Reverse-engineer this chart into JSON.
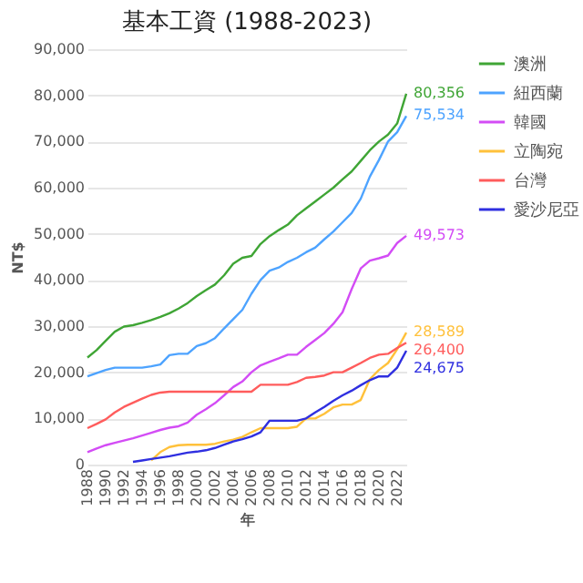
{
  "chart_data": {
    "type": "line",
    "title": "基本工資 (1988-2023)",
    "xlabel": "年",
    "ylabel": "NT$",
    "x": [
      1988,
      1989,
      1990,
      1991,
      1992,
      1993,
      1994,
      1995,
      1996,
      1997,
      1998,
      1999,
      2000,
      2001,
      2002,
      2003,
      2004,
      2005,
      2006,
      2007,
      2008,
      2009,
      2010,
      2011,
      2012,
      2013,
      2014,
      2015,
      2016,
      2017,
      2018,
      2019,
      2020,
      2021,
      2022,
      2023
    ],
    "series": [
      {
        "name": "澳洲",
        "color": "#3fa535",
        "values": [
          23200,
          24800,
          26800,
          28800,
          29900,
          30200,
          30700,
          31300,
          32000,
          32800,
          33800,
          35000,
          36500,
          37800,
          39000,
          41000,
          43500,
          44800,
          45200,
          47800,
          49500,
          50800,
          52000,
          54000,
          55500,
          57000,
          58500,
          60000,
          61800,
          63500,
          65800,
          68100,
          70000,
          71500,
          73900,
          80356
        ],
        "value_labels": [
          null,
          null,
          null,
          null,
          null,
          null,
          null,
          null,
          null,
          null,
          null,
          null,
          null,
          null,
          null,
          null,
          null,
          null,
          null,
          null,
          null,
          null,
          null,
          null,
          null,
          null,
          null,
          null,
          null,
          null,
          null,
          null,
          null,
          null,
          null,
          "80,356"
        ]
      },
      {
        "name": "紐西蘭",
        "color": "#4da3ff",
        "values": [
          19100,
          19800,
          20500,
          21000,
          21000,
          21000,
          21000,
          21300,
          21700,
          23700,
          24000,
          24000,
          25700,
          26300,
          27400,
          29500,
          31500,
          33500,
          37000,
          40000,
          42000,
          42700,
          43900,
          44800,
          46000,
          47000,
          48800,
          50500,
          52500,
          54500,
          57600,
          62400,
          66000,
          70000,
          72000,
          75534
        ],
        "value_labels": [
          null,
          null,
          null,
          null,
          null,
          null,
          null,
          null,
          null,
          null,
          null,
          null,
          null,
          null,
          null,
          null,
          null,
          null,
          null,
          null,
          null,
          null,
          null,
          null,
          null,
          null,
          null,
          null,
          null,
          null,
          null,
          null,
          null,
          null,
          null,
          "75,534"
        ]
      },
      {
        "name": "韓國",
        "color": "#d34cf5",
        "values": [
          2700,
          3500,
          4200,
          4700,
          5200,
          5700,
          6300,
          6900,
          7500,
          8000,
          8300,
          9100,
          10800,
          12000,
          13300,
          15000,
          16800,
          18000,
          20000,
          21500,
          22300,
          23000,
          23800,
          23800,
          25500,
          27000,
          28500,
          30500,
          33000,
          38000,
          42500,
          44200,
          44700,
          45300,
          48000,
          49573
        ],
        "value_labels": [
          null,
          null,
          null,
          null,
          null,
          null,
          null,
          null,
          null,
          null,
          null,
          null,
          null,
          null,
          null,
          null,
          null,
          null,
          null,
          null,
          null,
          null,
          null,
          null,
          null,
          null,
          null,
          null,
          null,
          null,
          null,
          null,
          null,
          null,
          null,
          "49,573"
        ]
      },
      {
        "name": "立陶宛",
        "color": "#ffc13b",
        "values": [
          null,
          null,
          null,
          null,
          null,
          null,
          null,
          900,
          2700,
          3800,
          4200,
          4300,
          4300,
          4300,
          4500,
          5000,
          5400,
          6000,
          7000,
          7900,
          7900,
          7900,
          7900,
          8200,
          10000,
          10000,
          11000,
          12400,
          13000,
          13000,
          14000,
          18500,
          20500,
          22000,
          25000,
          28589
        ],
        "value_labels": [
          null,
          null,
          null,
          null,
          null,
          null,
          null,
          null,
          null,
          null,
          null,
          null,
          null,
          null,
          null,
          null,
          null,
          null,
          null,
          null,
          null,
          null,
          null,
          null,
          null,
          null,
          null,
          null,
          null,
          null,
          null,
          null,
          null,
          null,
          null,
          "28,589"
        ]
      },
      {
        "name": "台灣",
        "color": "#ff5c5c",
        "values": [
          7900,
          8800,
          9800,
          11300,
          12500,
          13400,
          14300,
          15100,
          15600,
          15800,
          15800,
          15800,
          15800,
          15800,
          15800,
          15800,
          15800,
          15800,
          15800,
          17300,
          17300,
          17300,
          17300,
          17900,
          18800,
          19000,
          19300,
          20000,
          20000,
          21000,
          22000,
          23100,
          23800,
          24000,
          25250,
          26400
        ],
        "value_labels": [
          null,
          null,
          null,
          null,
          null,
          null,
          null,
          null,
          null,
          null,
          null,
          null,
          null,
          null,
          null,
          null,
          null,
          null,
          null,
          null,
          null,
          null,
          null,
          null,
          null,
          null,
          null,
          null,
          null,
          null,
          null,
          null,
          null,
          null,
          null,
          "26,400"
        ]
      },
      {
        "name": "愛沙尼亞",
        "color": "#2f2fe0",
        "values": [
          null,
          null,
          null,
          null,
          null,
          600,
          900,
          1200,
          1500,
          1800,
          2200,
          2600,
          2800,
          3100,
          3600,
          4300,
          5000,
          5500,
          6100,
          7000,
          9500,
          9500,
          9500,
          9500,
          10000,
          11300,
          12500,
          13800,
          15000,
          16000,
          17200,
          18300,
          19100,
          19100,
          21000,
          24675
        ],
        "value_labels": [
          null,
          null,
          null,
          null,
          null,
          null,
          null,
          null,
          null,
          null,
          null,
          null,
          null,
          null,
          null,
          null,
          null,
          null,
          null,
          null,
          null,
          null,
          null,
          null,
          null,
          null,
          null,
          null,
          null,
          null,
          null,
          null,
          null,
          null,
          null,
          "24,675"
        ]
      }
    ],
    "xlim": [
      1988,
      2023
    ],
    "xticks": [
      1988,
      1990,
      1992,
      1994,
      1996,
      1998,
      2000,
      2002,
      2004,
      2006,
      2008,
      2010,
      2012,
      2014,
      2016,
      2018,
      2020,
      2022
    ],
    "ylim": [
      0,
      90000
    ],
    "yticks": [
      {
        "value": 0,
        "label": "0"
      },
      {
        "value": 10000,
        "label": "10,000"
      },
      {
        "value": 20000,
        "label": "20,000"
      },
      {
        "value": 30000,
        "label": "30,000"
      },
      {
        "value": 40000,
        "label": "40,000"
      },
      {
        "value": 50000,
        "label": "50,000"
      },
      {
        "value": 60000,
        "label": "60,000"
      },
      {
        "value": 70000,
        "label": "70,000"
      },
      {
        "value": 80000,
        "label": "80,000"
      },
      {
        "value": 90000,
        "label": "90,000"
      }
    ],
    "grid": "y",
    "legend": "right",
    "marker": "none",
    "line_style": "solid"
  }
}
